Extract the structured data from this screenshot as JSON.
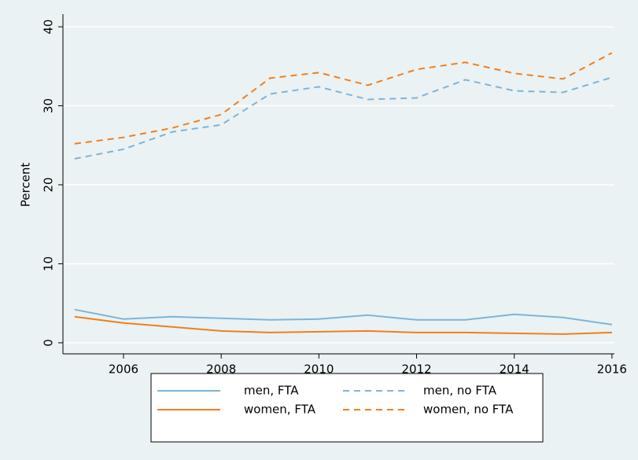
{
  "chart_data": {
    "type": "line",
    "y_label": "Percent",
    "x": [
      2005,
      2006,
      2007,
      2008,
      2009,
      2010,
      2011,
      2012,
      2013,
      2014,
      2015,
      2016
    ],
    "series": [
      {
        "name": "men, FTA",
        "color": "#7fb4d8",
        "dash": false,
        "values": [
          4.2,
          3.0,
          3.3,
          3.1,
          2.9,
          3.0,
          3.5,
          2.9,
          2.9,
          3.6,
          3.2,
          2.3
        ]
      },
      {
        "name": "women, FTA",
        "color": "#f07f1e",
        "dash": false,
        "values": [
          3.3,
          2.5,
          2.0,
          1.5,
          1.3,
          1.4,
          1.5,
          1.3,
          1.3,
          1.2,
          1.1,
          1.3
        ]
      },
      {
        "name": "men, no FTA",
        "color": "#7fb4d8",
        "dash": true,
        "values": [
          23.3,
          24.5,
          26.7,
          27.6,
          31.5,
          32.4,
          30.8,
          31.0,
          33.3,
          31.9,
          31.7,
          33.6
        ]
      },
      {
        "name": "women, no FTA",
        "color": "#f07f1e",
        "dash": true,
        "values": [
          25.2,
          26.0,
          27.2,
          28.9,
          33.5,
          34.2,
          32.6,
          34.6,
          35.5,
          34.1,
          33.4,
          36.7
        ]
      }
    ],
    "xlim": [
      2004.76,
      2016.05
    ],
    "xticks": [
      2006,
      2008,
      2010,
      2012,
      2014,
      2016
    ],
    "ylim": [
      -1.4,
      41.6
    ],
    "yticks": [
      0,
      10,
      20,
      30,
      40
    ],
    "grid": true,
    "legend_position": "bottom"
  }
}
